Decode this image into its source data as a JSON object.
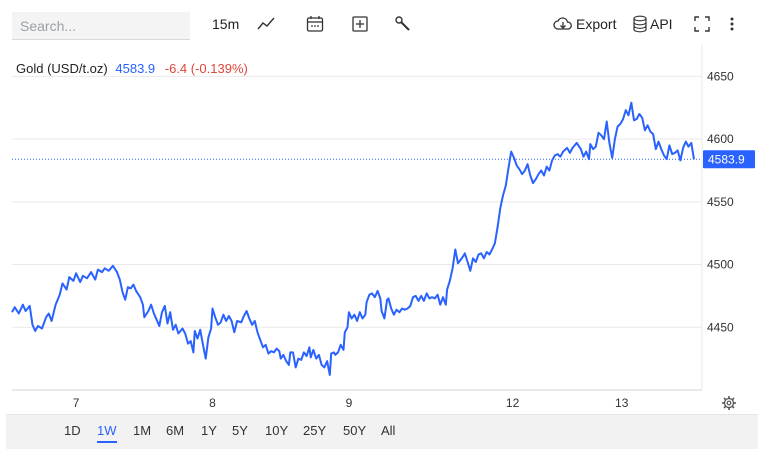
{
  "toolbar": {
    "search_placeholder": "Search...",
    "interval": "15m",
    "export_label": "Export",
    "api_label": "API",
    "icons": [
      "line-chart-icon",
      "calendar-icon",
      "add-indicator-icon",
      "tools-icon",
      "cloud-download-icon",
      "database-icon",
      "fullscreen-icon",
      "more-vertical-icon"
    ]
  },
  "legend": {
    "instrument": "Gold (USD/t.oz)",
    "price": "4583.9",
    "change": "-6.4 (-0.139%)"
  },
  "colors": {
    "line": "#2962ff",
    "price_label_bg": "#2962ff",
    "change": "#e0453a",
    "grid": "#e9e9e9"
  },
  "chart_data": {
    "type": "line",
    "title": "",
    "xlabel": "",
    "ylabel": "",
    "ylim": [
      4400,
      4675
    ],
    "y_ticks": [
      4450,
      4500,
      4550,
      4600,
      4650
    ],
    "x_ticks": [
      {
        "label": "7",
        "x": 0
      },
      {
        "label": "8",
        "x": 1
      },
      {
        "label": "9",
        "x": 2
      },
      {
        "label": "12",
        "x": 3.2
      },
      {
        "label": "13",
        "x": 4
      }
    ],
    "xlim": [
      -0.47,
      4.53
    ],
    "last_price": 4583.9,
    "last_price_label": "4583.9",
    "series": [
      {
        "values": [
          [
            -0.47,
            4462
          ],
          [
            -0.45,
            4466
          ],
          [
            -0.42,
            4461
          ],
          [
            -0.39,
            4468
          ],
          [
            -0.37,
            4463
          ],
          [
            -0.34,
            4467
          ],
          [
            -0.32,
            4452
          ],
          [
            -0.3,
            4447
          ],
          [
            -0.28,
            4451
          ],
          [
            -0.25,
            4449
          ],
          [
            -0.22,
            4458
          ],
          [
            -0.2,
            4461
          ],
          [
            -0.18,
            4455
          ],
          [
            -0.15,
            4468
          ],
          [
            -0.12,
            4476
          ],
          [
            -0.1,
            4485
          ],
          [
            -0.07,
            4480
          ],
          [
            -0.05,
            4490
          ],
          [
            -0.02,
            4487
          ],
          [
            0.0,
            4493
          ],
          [
            0.03,
            4486
          ],
          [
            0.05,
            4491
          ],
          [
            0.08,
            4489
          ],
          [
            0.11,
            4494
          ],
          [
            0.14,
            4488
          ],
          [
            0.16,
            4496
          ],
          [
            0.19,
            4494
          ],
          [
            0.21,
            4497
          ],
          [
            0.24,
            4495
          ],
          [
            0.27,
            4499
          ],
          [
            0.3,
            4494
          ],
          [
            0.32,
            4488
          ],
          [
            0.34,
            4478
          ],
          [
            0.36,
            4472
          ],
          [
            0.38,
            4482
          ],
          [
            0.4,
            4481
          ],
          [
            0.42,
            4484
          ],
          [
            0.44,
            4479
          ],
          [
            0.47,
            4474
          ],
          [
            0.49,
            4468
          ],
          [
            0.5,
            4458
          ],
          [
            0.53,
            4463
          ],
          [
            0.55,
            4468
          ],
          [
            0.57,
            4461
          ],
          [
            0.59,
            4456
          ],
          [
            0.61,
            4451
          ],
          [
            0.63,
            4462
          ],
          [
            0.65,
            4467
          ],
          [
            0.67,
            4453
          ],
          [
            0.69,
            4462
          ],
          [
            0.71,
            4448
          ],
          [
            0.73,
            4452
          ],
          [
            0.75,
            4445
          ],
          [
            0.78,
            4449
          ],
          [
            0.8,
            4445
          ],
          [
            0.82,
            4437
          ],
          [
            0.84,
            4439
          ],
          [
            0.86,
            4430
          ],
          [
            0.87,
            4447
          ],
          [
            0.89,
            4441
          ],
          [
            0.91,
            4448
          ],
          [
            0.93,
            4436
          ],
          [
            0.95,
            4425
          ],
          [
            0.97,
            4442
          ],
          [
            0.99,
            4449
          ],
          [
            1.0,
            4465
          ],
          [
            1.02,
            4458
          ],
          [
            1.04,
            4452
          ],
          [
            1.06,
            4454
          ],
          [
            1.08,
            4460
          ],
          [
            1.1,
            4455
          ],
          [
            1.12,
            4459
          ],
          [
            1.14,
            4455
          ],
          [
            1.16,
            4446
          ],
          [
            1.18,
            4455
          ],
          [
            1.21,
            4454
          ],
          [
            1.23,
            4459
          ],
          [
            1.25,
            4463
          ],
          [
            1.27,
            4457
          ],
          [
            1.29,
            4452
          ],
          [
            1.31,
            4455
          ],
          [
            1.33,
            4446
          ],
          [
            1.35,
            4440
          ],
          [
            1.37,
            4434
          ],
          [
            1.39,
            4436
          ],
          [
            1.41,
            4429
          ],
          [
            1.43,
            4431
          ],
          [
            1.45,
            4430
          ],
          [
            1.47,
            4433
          ],
          [
            1.49,
            4431
          ],
          [
            1.5,
            4425
          ],
          [
            1.52,
            4428
          ],
          [
            1.54,
            4423
          ],
          [
            1.56,
            4420
          ],
          [
            1.57,
            4430
          ],
          [
            1.59,
            4430
          ],
          [
            1.61,
            4418
          ],
          [
            1.63,
            4425
          ],
          [
            1.65,
            4424
          ],
          [
            1.67,
            4430
          ],
          [
            1.69,
            4427
          ],
          [
            1.71,
            4434
          ],
          [
            1.72,
            4426
          ],
          [
            1.74,
            4432
          ],
          [
            1.76,
            4425
          ],
          [
            1.78,
            4428
          ],
          [
            1.8,
            4420
          ],
          [
            1.82,
            4418
          ],
          [
            1.84,
            4423
          ],
          [
            1.86,
            4412
          ],
          [
            1.87,
            4429
          ],
          [
            1.89,
            4430
          ],
          [
            1.9,
            4428
          ],
          [
            1.92,
            4430
          ],
          [
            1.94,
            4436
          ],
          [
            1.96,
            4432
          ],
          [
            1.97,
            4446
          ],
          [
            1.99,
            4450
          ],
          [
            2.0,
            4462
          ],
          [
            2.02,
            4457
          ],
          [
            2.04,
            4460
          ],
          [
            2.06,
            4455
          ],
          [
            2.08,
            4462
          ],
          [
            2.1,
            4457
          ],
          [
            2.12,
            4460
          ],
          [
            2.13,
            4470
          ],
          [
            2.15,
            4476
          ],
          [
            2.17,
            4477
          ],
          [
            2.19,
            4474
          ],
          [
            2.21,
            4479
          ],
          [
            2.23,
            4473
          ],
          [
            2.24,
            4463
          ],
          [
            2.26,
            4457
          ],
          [
            2.28,
            4472
          ],
          [
            2.29,
            4473
          ],
          [
            2.31,
            4465
          ],
          [
            2.33,
            4460
          ],
          [
            2.35,
            4464
          ],
          [
            2.37,
            4462
          ],
          [
            2.39,
            4465
          ],
          [
            2.41,
            4464
          ],
          [
            2.43,
            4465
          ],
          [
            2.45,
            4467
          ],
          [
            2.47,
            4474
          ],
          [
            2.49,
            4475
          ],
          [
            2.51,
            4471
          ],
          [
            2.53,
            4475
          ],
          [
            2.55,
            4471
          ],
          [
            2.57,
            4477
          ],
          [
            2.59,
            4473
          ],
          [
            2.61,
            4474
          ],
          [
            2.63,
            4473
          ],
          [
            2.65,
            4476
          ],
          [
            2.67,
            4468
          ],
          [
            2.69,
            4474
          ],
          [
            2.71,
            4468
          ],
          [
            2.72,
            4480
          ],
          [
            2.74,
            4487
          ],
          [
            2.76,
            4497
          ],
          [
            2.78,
            4512
          ],
          [
            2.8,
            4501
          ],
          [
            2.82,
            4504
          ],
          [
            2.84,
            4507
          ],
          [
            2.85,
            4509
          ],
          [
            2.87,
            4502
          ],
          [
            2.89,
            4495
          ],
          [
            2.91,
            4505
          ],
          [
            2.93,
            4502
          ],
          [
            2.95,
            4508
          ],
          [
            2.97,
            4509
          ],
          [
            2.99,
            4505
          ],
          [
            3.01,
            4510
          ],
          [
            3.03,
            4508
          ],
          [
            3.05,
            4512
          ],
          [
            3.07,
            4517
          ],
          [
            3.09,
            4530
          ],
          [
            3.11,
            4545
          ],
          [
            3.13,
            4555
          ],
          [
            3.15,
            4563
          ],
          [
            3.17,
            4577
          ],
          [
            3.19,
            4590
          ],
          [
            3.21,
            4585
          ],
          [
            3.23,
            4579
          ],
          [
            3.25,
            4576
          ],
          [
            3.27,
            4572
          ],
          [
            3.29,
            4575
          ],
          [
            3.31,
            4580
          ],
          [
            3.33,
            4571
          ],
          [
            3.35,
            4565
          ],
          [
            3.37,
            4568
          ],
          [
            3.39,
            4572
          ],
          [
            3.41,
            4575
          ],
          [
            3.43,
            4571
          ],
          [
            3.45,
            4578
          ],
          [
            3.47,
            4575
          ],
          [
            3.49,
            4583
          ],
          [
            3.51,
            4587
          ],
          [
            3.53,
            4588
          ],
          [
            3.55,
            4586
          ],
          [
            3.57,
            4590
          ],
          [
            3.6,
            4593
          ],
          [
            3.62,
            4589
          ],
          [
            3.64,
            4593
          ],
          [
            3.67,
            4597
          ],
          [
            3.7,
            4592
          ],
          [
            3.72,
            4586
          ],
          [
            3.74,
            4590
          ],
          [
            3.76,
            4584
          ],
          [
            3.77,
            4596
          ],
          [
            3.79,
            4592
          ],
          [
            3.81,
            4594
          ],
          [
            3.83,
            4605
          ],
          [
            3.85,
            4603
          ],
          [
            3.87,
            4600
          ],
          [
            3.89,
            4614
          ],
          [
            3.91,
            4597
          ],
          [
            3.93,
            4585
          ],
          [
            3.95,
            4600
          ],
          [
            3.97,
            4610
          ],
          [
            3.99,
            4612
          ],
          [
            4.01,
            4616
          ],
          [
            4.03,
            4623
          ],
          [
            4.05,
            4619
          ],
          [
            4.07,
            4629
          ],
          [
            4.09,
            4615
          ],
          [
            4.11,
            4616
          ],
          [
            4.13,
            4620
          ],
          [
            4.15,
            4617
          ],
          [
            4.17,
            4607
          ],
          [
            4.19,
            4611
          ],
          [
            4.21,
            4606
          ],
          [
            4.23,
            4604
          ],
          [
            4.25,
            4592
          ],
          [
            4.27,
            4598
          ],
          [
            4.29,
            4592
          ],
          [
            4.31,
            4587
          ],
          [
            4.33,
            4584
          ],
          [
            4.35,
            4595
          ],
          [
            4.37,
            4588
          ],
          [
            4.39,
            4589
          ],
          [
            4.41,
            4591
          ],
          [
            4.43,
            4583
          ],
          [
            4.45,
            4593
          ],
          [
            4.47,
            4598
          ],
          [
            4.49,
            4594
          ],
          [
            4.51,
            4597
          ],
          [
            4.53,
            4583.9
          ]
        ]
      }
    ]
  },
  "ranges": {
    "items": [
      "1D",
      "1W",
      "1M",
      "6M",
      "1Y",
      "5Y",
      "10Y",
      "25Y",
      "50Y",
      "All"
    ],
    "active": "1W"
  }
}
